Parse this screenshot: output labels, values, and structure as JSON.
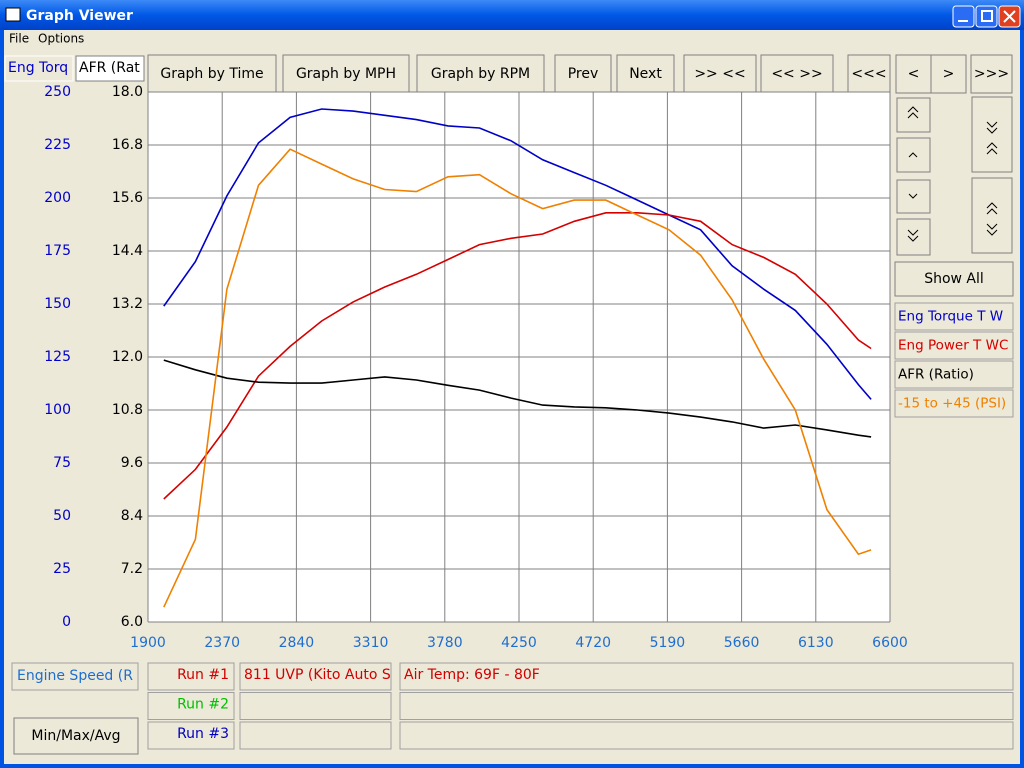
{
  "window": {
    "title": "Graph Viewer",
    "menu": [
      "File",
      "Options"
    ]
  },
  "axis_tabs": [
    "Eng Torq",
    "AFR (Rat"
  ],
  "toolbar": [
    "Graph by Time",
    "Graph by MPH",
    "Graph by RPM",
    "Prev",
    "Next",
    ">> <<",
    "<< >>",
    "<<<",
    "<",
    ">",
    ">>>"
  ],
  "side": {
    "show_all": "Show All"
  },
  "bottom": {
    "x_channel": "Engine Speed (R",
    "min_max_avg": "Min/Max/Avg",
    "runs": [
      {
        "label": "Run #1",
        "color": "#d00000",
        "file": "811 UVP (Kito Auto S",
        "note": "Air Temp: 69F - 80F"
      },
      {
        "label": "Run #2",
        "color": "#00c000"
      },
      {
        "label": "Run #3",
        "color": "#0000c0"
      }
    ]
  },
  "chart_data": {
    "type": "line",
    "x": [
      2000,
      2200,
      2400,
      2600,
      2800,
      3000,
      3200,
      3400,
      3600,
      3800,
      4000,
      4200,
      4400,
      4600,
      4800,
      5000,
      5200,
      5400,
      5600,
      5800,
      6000,
      6200,
      6400,
      6480
    ],
    "xlim": [
      1900,
      6600
    ],
    "xticks": [
      1900,
      2370,
      2840,
      3310,
      3780,
      4250,
      4720,
      5190,
      5660,
      6130,
      6600
    ],
    "ylim": [
      0,
      250
    ],
    "yticks": [
      0,
      25,
      50,
      75,
      100,
      125,
      150,
      175,
      200,
      225,
      250
    ],
    "y2lim": [
      6,
      18
    ],
    "y2ticks": [
      {
        "value": 6,
        "label": "6.0"
      },
      7.2,
      8.4,
      9.6,
      10.8,
      {
        "value": 12,
        "label": "12.0"
      },
      13.2,
      14.4,
      15.6,
      16.8,
      {
        "value": 18,
        "label": "18.0"
      }
    ],
    "grid": true,
    "series": [
      {
        "name": "Eng Torque T W",
        "color": "#0000c8",
        "values": [
          149,
          170,
          201,
          226,
          238,
          242,
          241,
          239,
          237,
          234,
          233,
          227,
          218,
          212,
          206,
          199,
          192,
          185,
          168,
          157,
          147,
          131,
          112,
          105
        ]
      },
      {
        "name": "Eng Power T WC",
        "color": "#d40000",
        "values": [
          58,
          72,
          92,
          116,
          130,
          142,
          151,
          158,
          164,
          171,
          178,
          181,
          183,
          189,
          193,
          193,
          192,
          189,
          178,
          172,
          164,
          150,
          133,
          129
        ]
      },
      {
        "name": "AFR (Ratio)",
        "color": "#000000",
        "axis": "y2",
        "values": [
          11.93,
          11.71,
          11.52,
          11.43,
          11.41,
          11.41,
          11.48,
          11.55,
          11.48,
          11.36,
          11.25,
          11.07,
          10.91,
          10.87,
          10.85,
          10.8,
          10.73,
          10.64,
          10.53,
          10.39,
          10.46,
          10.35,
          10.23,
          10.19
        ]
      },
      {
        "name": "-15 to +45 (PSI)",
        "color": "#f08000",
        "values": [
          7,
          39,
          157,
          206,
          223,
          216,
          209,
          204,
          203,
          210,
          211,
          202,
          195,
          199,
          199,
          192,
          185,
          173,
          152,
          124,
          100,
          53,
          32,
          34
        ]
      }
    ]
  }
}
